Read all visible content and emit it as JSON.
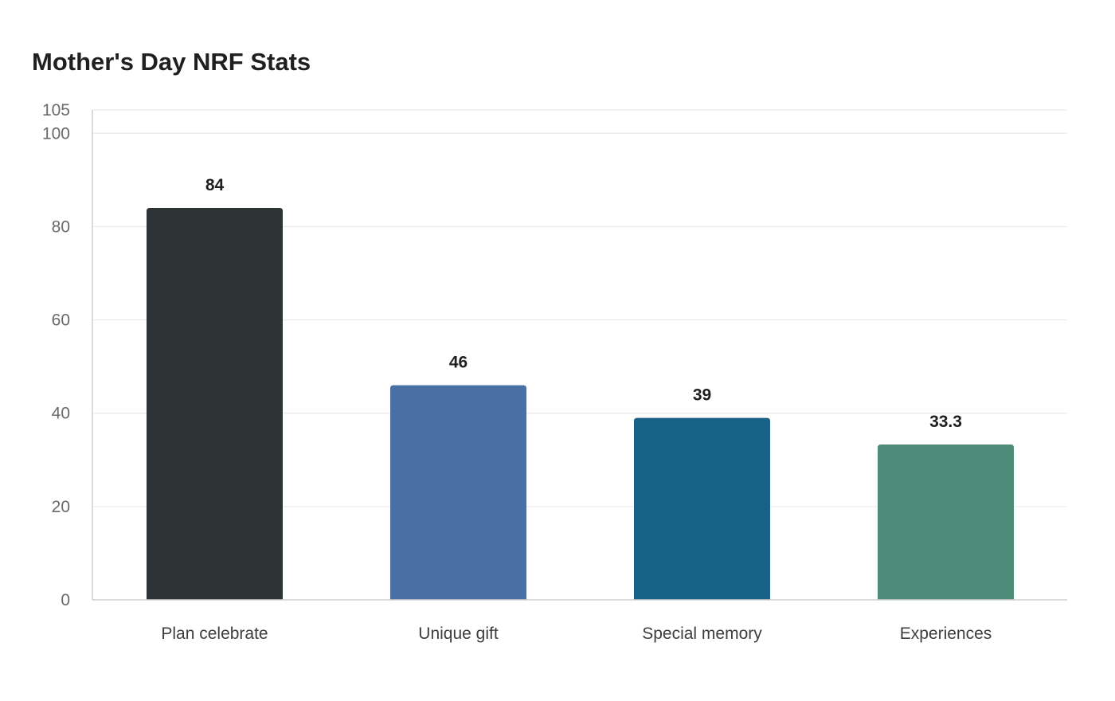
{
  "chart_data": {
    "type": "bar",
    "title": "Mother's Day NRF Stats",
    "categories": [
      "Plan celebrate",
      "Unique gift",
      "Special memory",
      "Experiences"
    ],
    "values": [
      84,
      46,
      39,
      33.3
    ],
    "value_labels": [
      "84",
      "46",
      "39",
      "33.3"
    ],
    "colors": [
      "#2d3436",
      "#4a6fa5",
      "#186288",
      "#4e8c7a"
    ],
    "ylim": [
      0,
      105
    ],
    "yticks": [
      0,
      20,
      40,
      60,
      80,
      100,
      105
    ],
    "xlabel": "",
    "ylabel": "",
    "grid": true,
    "legend": "none"
  }
}
